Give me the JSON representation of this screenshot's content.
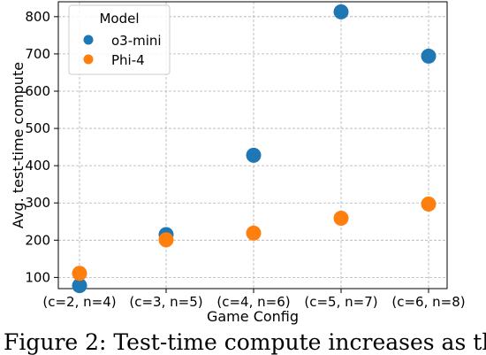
{
  "chart_data": {
    "type": "scatter",
    "xlabel": "Game Config",
    "ylabel": "Avg. test-time compute",
    "categories": [
      "(c=2, n=4)",
      "(c=3, n=5)",
      "(c=4, n=6)",
      "(c=5, n=7)",
      "(c=6, n=8)"
    ],
    "ylim": [
      70,
      840
    ],
    "yticks": [
      100,
      200,
      300,
      400,
      500,
      600,
      700,
      800
    ],
    "grid": true,
    "legend": {
      "title": "Model",
      "placement": "top-left"
    },
    "series": [
      {
        "name": "o3-mini",
        "color": "#1f77b4",
        "values": [
          78,
          215,
          428,
          813,
          694
        ]
      },
      {
        "name": "Phi-4",
        "color": "#ff7f0e",
        "values": [
          111,
          201,
          219,
          259,
          297
        ]
      }
    ]
  },
  "caption": "Figure 2:  Test-time compute increases as the"
}
